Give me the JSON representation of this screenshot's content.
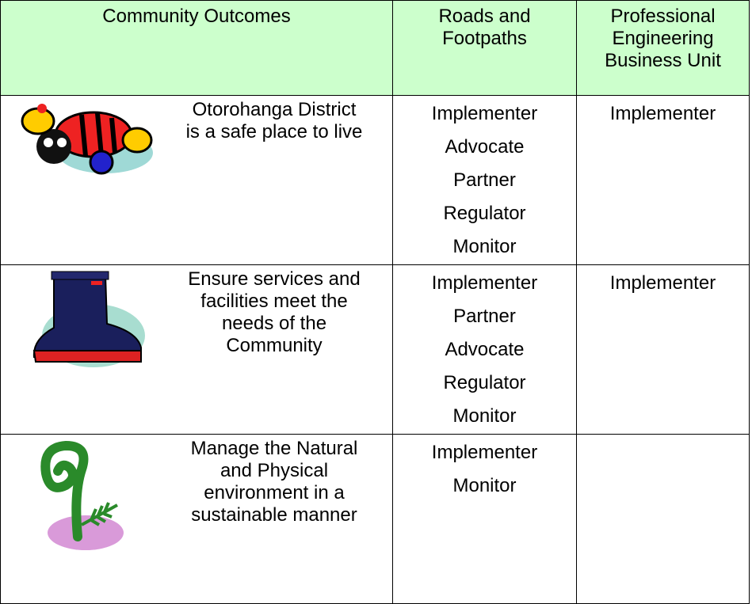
{
  "table": {
    "header": [
      "Community Outcomes",
      "Roads and Footpaths",
      "Professional Engineering Business Unit"
    ],
    "rows": [
      {
        "outcome": "Otorohanga District is a safe place to live",
        "roads": [
          "Implementer",
          "Advocate",
          "Partner",
          "Regulator",
          "Monitor"
        ],
        "engineering": [
          "Implementer"
        ]
      },
      {
        "outcome": "Ensure services and facilities meet the needs of the Community",
        "roads": [
          "Implementer",
          "Partner",
          "Advocate",
          "Regulator",
          "Monitor"
        ],
        "engineering": [
          "Implementer"
        ]
      },
      {
        "outcome": "Manage the Natural and Physical environment in a sustainable manner",
        "roads": [
          "Implementer",
          "Monitor"
        ],
        "engineering": []
      }
    ]
  }
}
